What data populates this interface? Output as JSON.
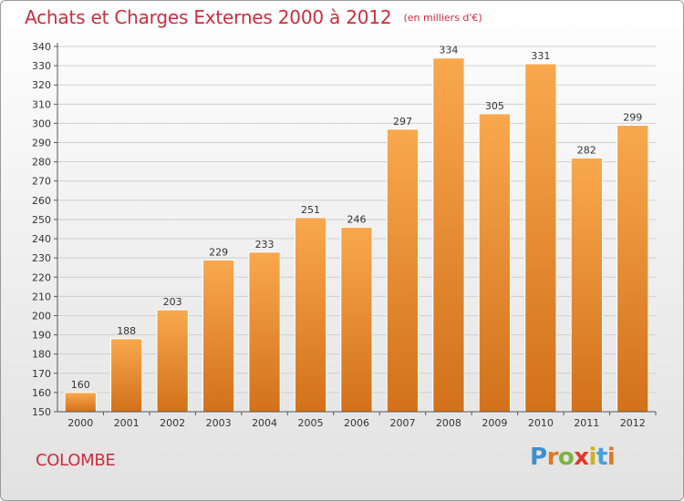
{
  "header": {
    "title": "Achats et Charges Externes 2000 à 2012",
    "subtitle": "(en milliers d'€)"
  },
  "footer": {
    "commune": "COLOMBE",
    "brand": [
      "P",
      "r",
      "o",
      "x",
      "i",
      "t",
      "i"
    ]
  },
  "colors": {
    "bar_light": "#f9a84e",
    "bar_dark": "#d2711a",
    "grid": "#cfcfcf",
    "axis": "#555555",
    "title": "#cc2d3f"
  },
  "chart_data": {
    "type": "bar",
    "title": "Achats et Charges Externes 2000 à 2012",
    "subtitle": "(en milliers d'€)",
    "xlabel": "",
    "ylabel": "",
    "categories": [
      "2000",
      "2001",
      "2002",
      "2003",
      "2004",
      "2005",
      "2006",
      "2007",
      "2008",
      "2009",
      "2010",
      "2011",
      "2012"
    ],
    "values": [
      160,
      188,
      203,
      229,
      233,
      251,
      246,
      297,
      334,
      305,
      331,
      282,
      299
    ],
    "ylim": [
      150,
      340
    ],
    "ytick_step": 10,
    "grid": true,
    "legend": "none"
  }
}
